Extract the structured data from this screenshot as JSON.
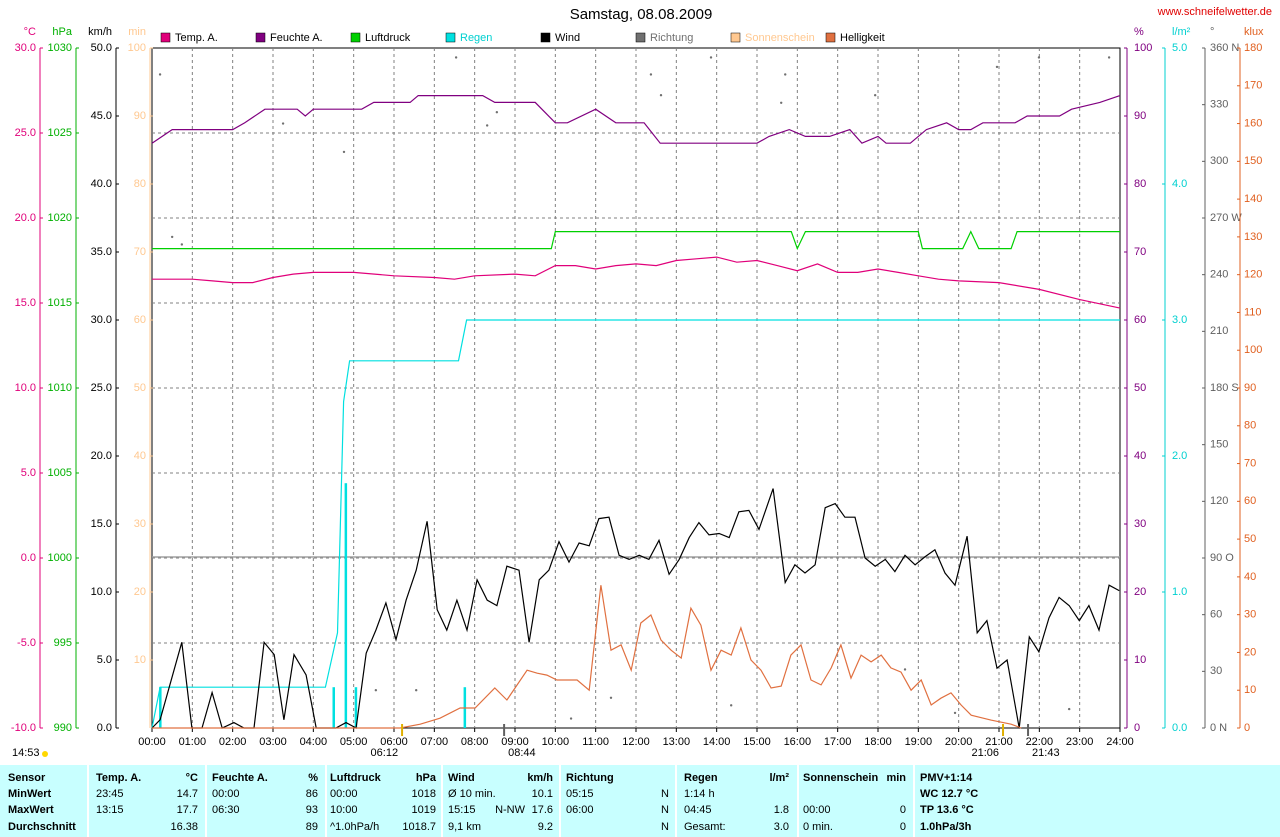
{
  "chart_data": {
    "type": "line",
    "title": "Samstag, 08.08.2009",
    "credit": "www.schneifelwetter.de",
    "timestamp": "14:53",
    "grid": true,
    "xlim": [
      0,
      24
    ],
    "xticks": [
      {
        "value": 0,
        "label": "00:00"
      },
      {
        "value": 1,
        "label": "01:00"
      },
      {
        "value": 2,
        "label": "02:00"
      },
      {
        "value": 3,
        "label": "03:00"
      },
      {
        "value": 4,
        "label": "04:00"
      },
      {
        "value": 5,
        "label": "05:00"
      },
      {
        "value": 6,
        "label": "06:00"
      },
      {
        "value": 7,
        "label": "07:00"
      },
      {
        "value": 8,
        "label": "08:00"
      },
      {
        "value": 9,
        "label": "09:00"
      },
      {
        "value": 10,
        "label": "10:00"
      },
      {
        "value": 11,
        "label": "11:00"
      },
      {
        "value": 12,
        "label": "12:00"
      },
      {
        "value": 13,
        "label": "13:00"
      },
      {
        "value": 14,
        "label": "14:00"
      },
      {
        "value": 15,
        "label": "15:00"
      },
      {
        "value": 16,
        "label": "16:00"
      },
      {
        "value": 17,
        "label": "17:00"
      },
      {
        "value": 18,
        "label": "18:00"
      },
      {
        "value": 19,
        "label": "19:00"
      },
      {
        "value": 20,
        "label": "20:00"
      },
      {
        "value": 21,
        "label": "21:00"
      },
      {
        "value": 22,
        "label": "22:00"
      },
      {
        "value": 23,
        "label": "23:00"
      },
      {
        "value": 24,
        "label": "24:00"
      }
    ],
    "axes": [
      {
        "unit": "°C",
        "color": "#e0007a",
        "ylim": [
          -10,
          30
        ],
        "yticks": [
          {
            "value": -10,
            "label": "-10.0"
          },
          {
            "value": -5,
            "label": "-5.0"
          },
          {
            "value": 0,
            "label": "0.0"
          },
          {
            "value": 5,
            "label": "5.0"
          },
          {
            "value": 10,
            "label": "10.0"
          },
          {
            "value": 15,
            "label": "15.0"
          },
          {
            "value": 20,
            "label": "20.0"
          },
          {
            "value": 25,
            "label": "25.0"
          },
          {
            "value": 30,
            "label": "30.0"
          }
        ]
      },
      {
        "unit": "hPa",
        "color": "#00b000",
        "ylim": [
          990,
          1030
        ],
        "yticks": [
          990,
          995,
          1000,
          1005,
          1010,
          1015,
          1020,
          1025,
          1030
        ]
      },
      {
        "unit": "km/h",
        "color": "#000000",
        "ylim": [
          0,
          50
        ],
        "yticks": [
          {
            "value": 0,
            "label": "0.0"
          },
          {
            "value": 5,
            "label": "5.0"
          },
          {
            "value": 10,
            "label": "10.0"
          },
          {
            "value": 15,
            "label": "15.0"
          },
          {
            "value": 20,
            "label": "20.0"
          },
          {
            "value": 25,
            "label": "25.0"
          },
          {
            "value": 30,
            "label": "30.0"
          },
          {
            "value": 35,
            "label": "35.0"
          },
          {
            "value": 40,
            "label": "40.0"
          },
          {
            "value": 45,
            "label": "45.0"
          },
          {
            "value": 50,
            "label": "50.0"
          }
        ]
      },
      {
        "unit": "min",
        "color": "#ffc890",
        "ylim": [
          0,
          100
        ],
        "yticks": [
          10,
          20,
          30,
          40,
          50,
          60,
          70,
          80,
          90,
          100
        ]
      },
      {
        "unit": "%",
        "color": "#800080",
        "ylim": [
          0,
          100
        ],
        "yticks": [
          0,
          10,
          20,
          30,
          40,
          50,
          60,
          70,
          80,
          90,
          100
        ]
      },
      {
        "unit": "l/m²",
        "color": "#00d0d0",
        "ylim": [
          0,
          5
        ],
        "yticks": [
          {
            "value": 0,
            "label": "0.0"
          },
          {
            "value": 1,
            "label": "1.0"
          },
          {
            "value": 2,
            "label": "2.0"
          },
          {
            "value": 3,
            "label": "3.0"
          },
          {
            "value": 4,
            "label": "4.0"
          },
          {
            "value": 5,
            "label": "5.0"
          }
        ]
      },
      {
        "unit": "°",
        "color": "#606060",
        "ylim": [
          0,
          360
        ],
        "yticks": [
          {
            "value": 0,
            "label": "0   N"
          },
          30,
          60,
          {
            "value": 90,
            "label": "90   O"
          },
          120,
          150,
          {
            "value": 180,
            "label": "180 S"
          },
          210,
          240,
          {
            "value": 270,
            "label": "270 W"
          },
          300,
          330,
          {
            "value": 360,
            "label": "360 N"
          }
        ]
      },
      {
        "unit": "klux",
        "color": "#e06020",
        "ylim": [
          0,
          180
        ],
        "yticks": [
          0,
          10,
          20,
          30,
          40,
          50,
          60,
          70,
          80,
          90,
          100,
          110,
          120,
          130,
          140,
          150,
          160,
          170,
          180
        ]
      }
    ],
    "series": [
      {
        "name": "Temp. A.",
        "color": "#e0007a",
        "axis": "°C",
        "x": [
          0,
          1,
          1.5,
          2,
          2.5,
          3,
          3.5,
          4,
          5,
          6,
          7,
          7.5,
          8,
          9,
          9.5,
          10,
          10.5,
          11,
          11.5,
          12,
          12.5,
          13,
          13.5,
          14,
          14.5,
          15,
          15.5,
          16,
          16.5,
          17,
          17.5,
          18,
          18.5,
          19,
          19.5,
          20,
          21,
          22,
          23,
          24
        ],
        "values": [
          16.4,
          16.4,
          16.3,
          16.2,
          16.2,
          16.5,
          16.7,
          16.8,
          16.8,
          16.6,
          16.5,
          16.4,
          16.6,
          16.7,
          16.6,
          17.2,
          17.2,
          17.0,
          17.2,
          17.3,
          17.2,
          17.5,
          17.6,
          17.7,
          17.4,
          17.5,
          17.2,
          16.9,
          17.3,
          16.8,
          16.8,
          17.0,
          16.8,
          16.6,
          16.4,
          16.3,
          16.2,
          15.8,
          15.2,
          14.7
        ]
      },
      {
        "name": "Feuchte A.",
        "color": "#800080",
        "axis": "%",
        "x": [
          0,
          0.5,
          2,
          2.3,
          2.8,
          3.6,
          3.8,
          4.0,
          5.2,
          5.5,
          6.4,
          6.6,
          8.2,
          8.5,
          9.5,
          10.0,
          10.3,
          11.0,
          11.5,
          12.2,
          12.6,
          15.0,
          15.3,
          15.8,
          16.2,
          16.8,
          17.3,
          17.6,
          18.0,
          18.2,
          18.8,
          19.2,
          19.7,
          20.0,
          20.3,
          20.6,
          21.4,
          21.7,
          22.5,
          22.8,
          23.5,
          24
        ],
        "values": [
          86,
          88,
          88,
          89,
          91,
          91,
          90,
          91,
          91,
          92,
          92,
          93,
          93,
          92,
          92,
          89,
          89,
          91,
          89,
          89,
          86,
          86,
          87,
          88,
          87,
          87,
          88,
          86,
          87,
          86,
          86,
          88,
          89,
          88,
          88,
          89,
          89,
          90,
          90,
          91,
          92,
          93
        ]
      },
      {
        "name": "Luftdruck",
        "color": "#00d000",
        "axis": "hPa",
        "x": [
          0,
          9.9,
          10.0,
          15.85,
          16.0,
          16.2,
          19.0,
          19.1,
          20.1,
          20.3,
          20.5,
          21.3,
          21.45,
          24
        ],
        "values": [
          1018.2,
          1018.2,
          1019.2,
          1019.2,
          1018.2,
          1019.2,
          1019.2,
          1018.2,
          1018.2,
          1019.2,
          1018.2,
          1018.2,
          1019.2,
          1019.2
        ]
      },
      {
        "name": "Regen",
        "color": "#00e0e0",
        "label_color": "#00d0d0",
        "axis": "l/m²",
        "x": [
          0,
          0.2,
          4.3,
          4.6,
          4.75,
          4.9,
          5.05,
          7.6,
          7.8,
          24
        ],
        "values": [
          0,
          0.3,
          0.3,
          0.7,
          2.4,
          2.7,
          2.7,
          2.7,
          3.0,
          3.0
        ],
        "bars": {
          "x": [
            0.2,
            4.5,
            4.8,
            5.05,
            7.75
          ],
          "values": [
            0.3,
            0.3,
            1.8,
            0.3,
            0.3
          ]
        }
      },
      {
        "name": "Wind",
        "color": "#000000",
        "axis": "km/h",
        "x": [
          0,
          0.2,
          0.74,
          0.99,
          1.24,
          1.49,
          1.74,
          2.03,
          2.28,
          2.53,
          2.78,
          3.03,
          3.27,
          3.52,
          3.82,
          4.07,
          4.31,
          4.56,
          4.81,
          5.06,
          5.31,
          5.55,
          5.8,
          6.05,
          6.3,
          6.55,
          6.82,
          7.07,
          7.31,
          7.56,
          7.81,
          8.06,
          8.31,
          8.55,
          8.8,
          9.1,
          9.35,
          9.6,
          9.84,
          10.09,
          10.34,
          10.59,
          10.84,
          11.08,
          11.33,
          11.58,
          11.83,
          12.08,
          12.32,
          12.57,
          12.82,
          13.07,
          13.32,
          13.56,
          13.81,
          14.06,
          14.31,
          14.55,
          14.8,
          15.05,
          15.4,
          15.7,
          15.94,
          16.19,
          16.44,
          16.69,
          16.94,
          17.18,
          17.43,
          17.68,
          17.93,
          18.18,
          18.42,
          18.67,
          18.92,
          19.17,
          19.41,
          19.66,
          19.91,
          20.21,
          20.46,
          20.7,
          20.95,
          21.2,
          21.5,
          21.75,
          21.99,
          22.24,
          22.49,
          22.74,
          22.99,
          23.23,
          23.48,
          23.73,
          23.98
        ],
        "values": [
          0,
          0.6,
          6.3,
          0,
          0,
          2.6,
          0,
          0.4,
          0,
          0,
          6.3,
          5.4,
          0.6,
          5.4,
          3.9,
          0,
          0,
          0,
          0.4,
          0,
          5.5,
          7.2,
          9.2,
          6.5,
          9.4,
          11.6,
          15.2,
          8.7,
          7.2,
          9.4,
          7.2,
          10.9,
          9.4,
          9.0,
          11.9,
          11.6,
          6.3,
          10.9,
          11.6,
          13.7,
          12.2,
          13.6,
          13.4,
          15.4,
          15.5,
          12.7,
          12.4,
          12.7,
          12.4,
          13.8,
          11.3,
          12.4,
          14.0,
          15.1,
          14.2,
          14.3,
          14.0,
          15.9,
          16.0,
          14.6,
          17.6,
          10.7,
          12.0,
          11.4,
          12.0,
          16.2,
          16.5,
          15.5,
          15.5,
          12.5,
          11.9,
          12.4,
          11.5,
          12.7,
          12.0,
          12.6,
          13.1,
          11.4,
          10.5,
          14.1,
          7.0,
          7.9,
          4.4,
          5.0,
          0,
          6.7,
          5.6,
          8.1,
          9.6,
          9.0,
          7.9,
          9.0,
          7.2,
          10.5,
          10.1
        ]
      },
      {
        "name": "Richtung",
        "color": "#707070",
        "label_color": "#707070",
        "axis": "°",
        "style": "dots",
        "x": [
          0.2,
          0.5,
          0.74,
          3.25,
          4.76,
          5.55,
          6.55,
          7.54,
          8.31,
          8.55,
          10.39,
          11.38,
          12.37,
          12.62,
          13.86,
          14.36,
          15.6,
          15.7,
          17.93,
          18.67,
          19.91,
          20.95,
          21.99,
          22.74,
          23.73
        ],
        "values": [
          346,
          260,
          256,
          320,
          305,
          20,
          20,
          355,
          319,
          326,
          5,
          16,
          346,
          335,
          355,
          12,
          331,
          346,
          335,
          31,
          8,
          350,
          355,
          10,
          355
        ]
      },
      {
        "name": "Sonnenschein",
        "color": "#ffc890",
        "label_color": "#ffc890",
        "axis": "min",
        "x": [],
        "values": []
      },
      {
        "name": "Helligkeit",
        "color": "#e07040",
        "axis": "klux",
        "x": [
          0,
          6.15,
          6.65,
          7.14,
          7.64,
          8.01,
          8.5,
          8.8,
          9.3,
          9.55,
          9.79,
          10.04,
          10.54,
          10.84,
          11.13,
          11.38,
          11.63,
          11.88,
          12.12,
          12.37,
          12.62,
          12.87,
          13.12,
          13.36,
          13.61,
          13.86,
          14.11,
          14.36,
          14.6,
          14.85,
          15.1,
          15.35,
          15.6,
          15.84,
          16.09,
          16.34,
          16.59,
          16.84,
          17.08,
          17.33,
          17.58,
          17.83,
          18.08,
          18.32,
          18.57,
          18.82,
          19.07,
          19.32,
          19.56,
          19.81,
          20.06,
          20.31,
          20.8,
          21.3,
          21.55
        ],
        "values": [
          0,
          0,
          1,
          2.6,
          5.3,
          5.3,
          10.6,
          7.4,
          15.3,
          14.5,
          14,
          12.7,
          12.7,
          10,
          37.8,
          20.6,
          22,
          15.3,
          27.8,
          29.9,
          23.3,
          20.6,
          18.5,
          31.7,
          27.2,
          15.3,
          20.6,
          19.3,
          26.5,
          18,
          15.3,
          10.6,
          11.1,
          19.3,
          22,
          12.7,
          11.4,
          15.9,
          22,
          13.2,
          19.3,
          17.5,
          19.3,
          15.9,
          14.8,
          10,
          12.7,
          6.1,
          7.9,
          9.3,
          6.1,
          3.4,
          2.1,
          1,
          0
        ]
      }
    ],
    "annotations": [
      {
        "x": 6.2,
        "label": "06:12"
      },
      {
        "x": 8.73,
        "label": "08:44"
      },
      {
        "x": 21.1,
        "label": "21:06"
      },
      {
        "x": 21.72,
        "label": "21:43"
      }
    ]
  },
  "table": {
    "header": [
      "Sensor",
      "Temp. A.",
      "°C",
      "Feuchte A.",
      "%",
      "Luftdruck",
      "hPa",
      "Wind",
      null,
      "km/h",
      "Richtung",
      null,
      "Regen",
      "l/m²",
      "Sonnenschein",
      "min",
      "PMV+1:14"
    ],
    "rows": [
      [
        "MinWert",
        "23:45",
        "14.7",
        "00:00",
        "86",
        "00:00",
        "1018",
        "Ø 10 min.",
        null,
        "10.1",
        "05:15",
        "N",
        "1:14 h",
        null,
        null,
        null,
        "WC 12.7 °C"
      ],
      [
        "MaxWert",
        "13:15",
        "17.7",
        "06:30",
        "93",
        "10:00",
        "1019",
        "15:15",
        "N-NW",
        "17.6",
        "06:00",
        "N",
        "04:45",
        "1.8",
        "00:00",
        "0",
        "TP 13.6 °C"
      ],
      [
        "Durchschnitt",
        null,
        "16.38",
        null,
        "89",
        "^1.0hPa/h",
        "1018.7",
        "9,1 km",
        null,
        "9.2",
        null,
        "N",
        "Gesamt:",
        "3.0",
        "0 min.",
        "0",
        "1.0hPa/3h"
      ]
    ]
  }
}
